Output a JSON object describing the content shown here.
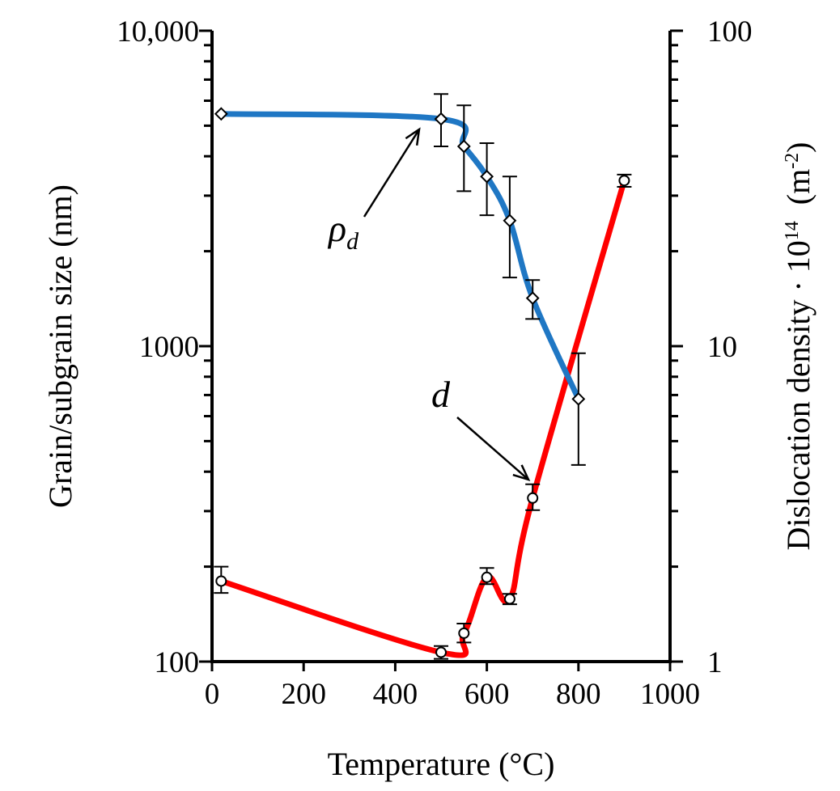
{
  "chart_data": {
    "type": "line",
    "title": "",
    "xlabel": "Temperature (°C)",
    "ylabel_left": "Grain/subgrain size (nm)",
    "ylabel_right": {
      "prefix": "Dislocation density · 10",
      "superscript": "14",
      "unit_open": "  (m",
      "unit_sup": "-2",
      "unit_close": ")"
    },
    "xlim": [
      0,
      1000
    ],
    "x_ticks": [
      "0",
      "200",
      "400",
      "600",
      "800",
      "1000"
    ],
    "y_left_scale": "log",
    "y_left_lim": [
      100,
      10000
    ],
    "y_left_ticks": [
      "100",
      "1000",
      "10,000"
    ],
    "y_right_scale": "log",
    "y_right_lim": [
      1,
      100
    ],
    "y_right_ticks": [
      "1",
      "10",
      "100"
    ],
    "grid": false,
    "series": [
      {
        "name": "d",
        "axis": "left",
        "color": "#ff0000",
        "marker": "circle",
        "x": [
          20,
          500,
          550,
          600,
          650,
          700,
          900
        ],
        "y": [
          180,
          107,
          123,
          185,
          158,
          330,
          3350
        ],
        "err_low": [
          165,
          102,
          115,
          176,
          152,
          302,
          3200
        ],
        "err_high": [
          200,
          112,
          132,
          198,
          164,
          365,
          3500
        ]
      },
      {
        "name": "ρd",
        "axis": "right",
        "color": "#1f77c4",
        "marker": "diamond",
        "x": [
          20,
          500,
          550,
          600,
          650,
          700,
          800
        ],
        "y": [
          54.5,
          52.5,
          43,
          34.5,
          25,
          14.2,
          6.8
        ],
        "err_low": [
          54.5,
          43,
          31,
          26,
          16.5,
          12.2,
          4.2
        ],
        "err_high": [
          54.5,
          63,
          58,
          44,
          34.5,
          16.2,
          9.5
        ]
      }
    ],
    "annotations": [
      {
        "label": "ρ",
        "subscript": "d",
        "series": "ρd"
      },
      {
        "label": "d",
        "series": "d"
      }
    ]
  }
}
